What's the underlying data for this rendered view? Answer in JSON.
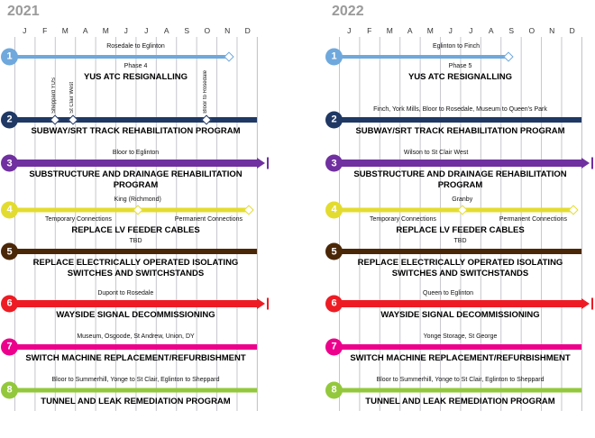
{
  "chart_data": {
    "type": "gantt",
    "months": [
      "J",
      "F",
      "M",
      "A",
      "M",
      "J",
      "J",
      "A",
      "S",
      "O",
      "N",
      "D"
    ],
    "panels": [
      {
        "year": "2021",
        "rows": [
          {
            "num": "1",
            "color": "#6FA8DC",
            "title": "YUS ATC RESIGNALLING",
            "ann": "Rosedale to Eglinton",
            "annPos": 6.0,
            "phase": "Phase 4",
            "bar": {
              "start": 0,
              "end": 10.6,
              "h": 4,
              "endDiamond": true
            }
          },
          {
            "num": "2",
            "color": "#1F3864",
            "title": "SUBWAY/SRT TRACK REHABILITATION PROGRAM",
            "vlabels": [
              {
                "pos": 2.0,
                "text": "Sheppard YUS"
              },
              {
                "pos": 2.9,
                "text": "St Clair West"
              },
              {
                "pos": 9.5,
                "text": "Bloor to Rosedale"
              }
            ],
            "bar": {
              "start": 0,
              "end": 12,
              "h": 6,
              "diamonds": [
                2.0,
                2.9,
                9.5
              ]
            }
          },
          {
            "num": "3",
            "color": "#7030A0",
            "title": "SUBSTRUCTURE AND DRAINAGE REHABILITATION PROGRAM",
            "ann": "Bloor to Eglinton",
            "annPos": 6.0,
            "bar": {
              "start": 0,
              "end": 12,
              "h": 8,
              "arrow": true
            }
          },
          {
            "num": "4",
            "color": "#E3DC30",
            "title": "REPLACE LV FEEDER CABLES",
            "ann": "King (Richmond)",
            "annPos": 6.1,
            "subLeft": "Temporary Connections",
            "subRight": "Permanent Connections",
            "bar": {
              "start": 0,
              "end": 11.6,
              "h": 5,
              "endDiamond": true,
              "diamonds": [
                6.1
              ]
            }
          },
          {
            "num": "5",
            "color": "#4A2707",
            "title": "REPLACE ELECTRICALLY OPERATED ISOLATING SWITCHES AND SWITCHSTANDS",
            "ann": "TBD",
            "annPos": 6.0,
            "bar": {
              "start": 0,
              "end": 12,
              "h": 6
            }
          },
          {
            "num": "6",
            "color": "#ED1C24",
            "title": "WAYSIDE SIGNAL DECOMMISSIONING",
            "ann": "Dupont to Rosedale",
            "annPos": 5.5,
            "bar": {
              "start": 0,
              "end": 12,
              "h": 8,
              "arrow": true
            }
          },
          {
            "num": "7",
            "color": "#EC008C",
            "title": "SWITCH MACHINE REPLACEMENT/REFURBISHMENT",
            "ann": "Museum, Osgoode, St Andrew, Union, DY",
            "annPos": 6.0,
            "bar": {
              "start": 0,
              "end": 12,
              "h": 6
            }
          },
          {
            "num": "8",
            "color": "#93C83D",
            "title": "TUNNEL AND LEAK REMEDIATION PROGRAM",
            "ann": "Bloor to Summerhill, Yonge to St Clair, Eglinton to Sheppard",
            "annPos": 6.0,
            "bar": {
              "start": 0,
              "end": 12,
              "h": 5
            }
          }
        ]
      },
      {
        "year": "2022",
        "rows": [
          {
            "num": "1",
            "color": "#6FA8DC",
            "title": "YUS ATC RESIGNALLING",
            "ann": "Eglinton to Finch",
            "annPos": 5.8,
            "phase": "Phase 5",
            "bar": {
              "start": 0,
              "end": 8.4,
              "h": 4,
              "endDiamond": true
            }
          },
          {
            "num": "2",
            "color": "#1F3864",
            "title": "SUBWAY/SRT TRACK REHABILITATION PROGRAM",
            "ann": "Finch, York Mills, Bloor to Rosedale, Museum to Queen's Park",
            "annPos": 6.0,
            "bar": {
              "start": 0,
              "end": 12,
              "h": 6
            }
          },
          {
            "num": "3",
            "color": "#7030A0",
            "title": "SUBSTRUCTURE AND DRAINAGE REHABILITATION PROGRAM",
            "ann": "Wilson to St Clair West",
            "annPos": 4.8,
            "bar": {
              "start": 0,
              "end": 12,
              "h": 8,
              "arrow": true
            }
          },
          {
            "num": "4",
            "color": "#E3DC30",
            "title": "REPLACE LV FEEDER CABLES",
            "ann": "Granby",
            "annPos": 6.1,
            "subLeft": "Temporary Connections",
            "subRight": "Permanent Connections",
            "bar": {
              "start": 0,
              "end": 11.6,
              "h": 5,
              "endDiamond": true,
              "diamonds": [
                6.1
              ]
            }
          },
          {
            "num": "5",
            "color": "#4A2707",
            "title": "REPLACE ELECTRICALLY OPERATED ISOLATING SWITCHES AND SWITCHSTANDS",
            "ann": "TBD",
            "annPos": 6.0,
            "bar": {
              "start": 0,
              "end": 12,
              "h": 6
            }
          },
          {
            "num": "6",
            "color": "#ED1C24",
            "title": "WAYSIDE SIGNAL DECOMMISSIONING",
            "ann": "Queen to Eglinton",
            "annPos": 5.4,
            "bar": {
              "start": 0,
              "end": 12,
              "h": 8,
              "arrow": true
            }
          },
          {
            "num": "7",
            "color": "#EC008C",
            "title": "SWITCH MACHINE REPLACEMENT/REFURBISHMENT",
            "ann": "Yonge Storage, St George",
            "annPos": 6.0,
            "bar": {
              "start": 0,
              "end": 12,
              "h": 6
            }
          },
          {
            "num": "8",
            "color": "#93C83D",
            "title": "TUNNEL AND LEAK REMEDIATION PROGRAM",
            "ann": "Bloor to Summerhill, Yonge to St Clair, Eglinton to Sheppard",
            "annPos": 6.0,
            "bar": {
              "start": 0,
              "end": 12,
              "h": 5
            }
          }
        ]
      }
    ]
  }
}
